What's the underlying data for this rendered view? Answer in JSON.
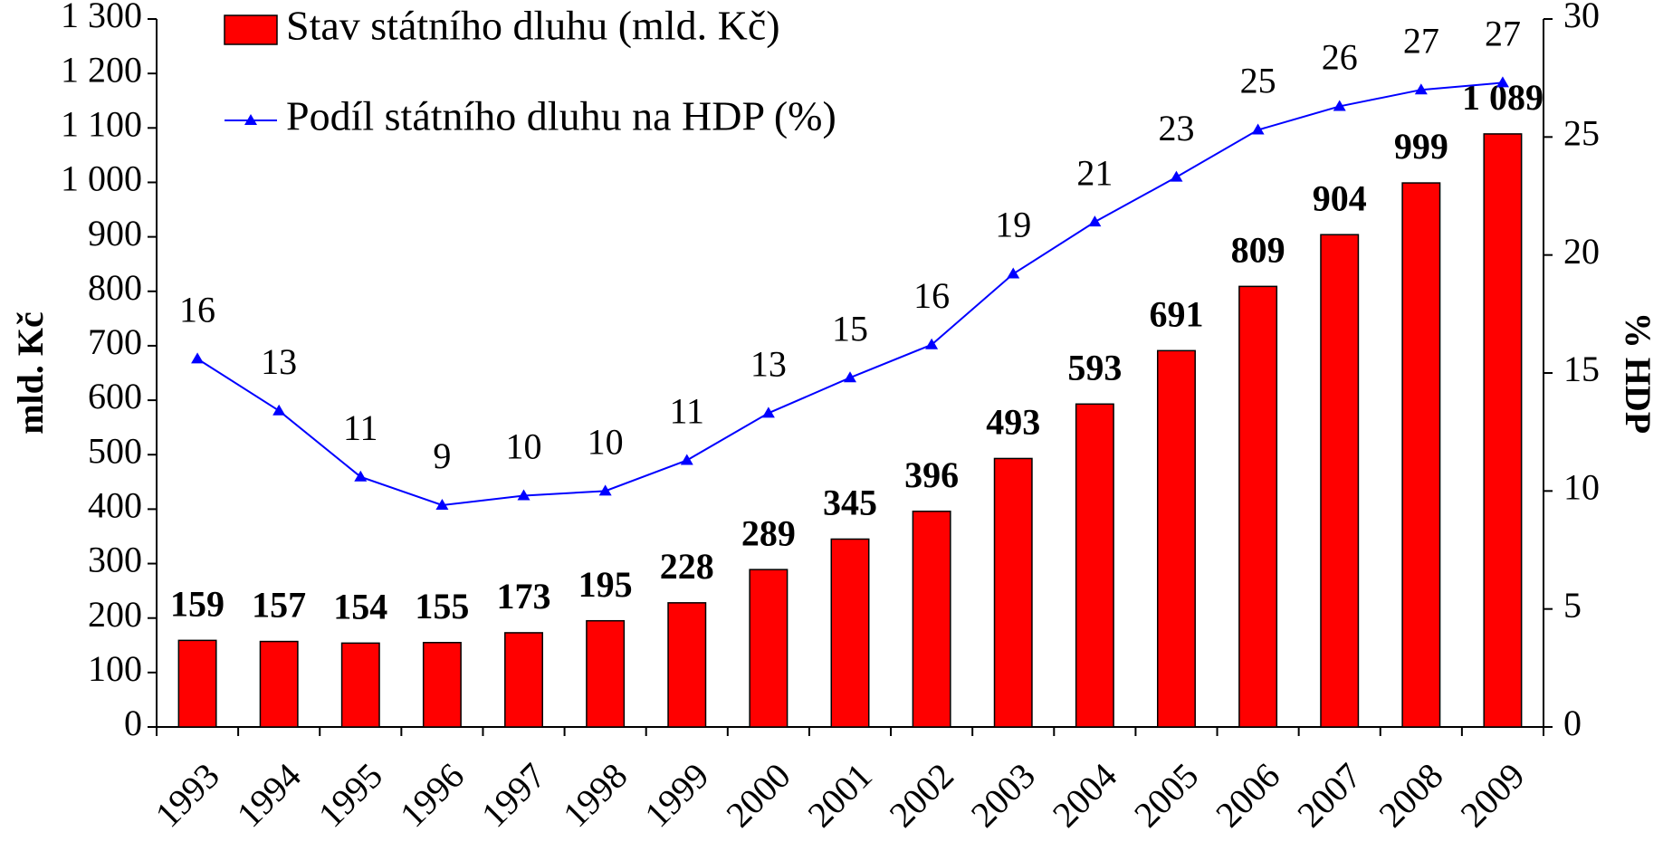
{
  "chart_data": {
    "type": "bar-line",
    "categories": [
      "1993",
      "1994",
      "1995",
      "1996",
      "1997",
      "1998",
      "1999",
      "2000",
      "2001",
      "2002",
      "2003",
      "2004",
      "2005",
      "2006",
      "2007",
      "2008",
      "2009"
    ],
    "series": [
      {
        "name": "Stav státního dluhu (mld. Kč)",
        "type": "bar",
        "color": "#ff0000",
        "values": [
          159,
          157,
          154,
          155,
          173,
          195,
          228,
          289,
          345,
          396,
          493,
          593,
          691,
          809,
          904,
          999,
          1089
        ],
        "value_labels": [
          "159",
          "157",
          "154",
          "155",
          "173",
          "195",
          "228",
          "289",
          "345",
          "396",
          "493",
          "593",
          "691",
          "809",
          "904",
          "999",
          "1 089"
        ]
      },
      {
        "name": "Podíl státního dluhu na HDP (%)",
        "type": "line",
        "axis": "y2",
        "color": "#0000ff",
        "values": [
          15.6,
          13.4,
          10.6,
          9.4,
          9.8,
          10.0,
          11.3,
          13.3,
          14.8,
          16.2,
          19.2,
          21.4,
          23.3,
          25.3,
          26.3,
          27.0,
          27.3
        ],
        "value_labels": [
          "16",
          "13",
          "11",
          "9",
          "10",
          "10",
          "11",
          "13",
          "15",
          "16",
          "19",
          "21",
          "23",
          "25",
          "26",
          "27",
          "27"
        ]
      }
    ],
    "ylabel": "mld. Kč",
    "y2label": "% HDP",
    "ylim": [
      0,
      1300
    ],
    "yticks": [
      0,
      100,
      200,
      300,
      400,
      500,
      600,
      700,
      800,
      900,
      {
        "value": 1000,
        "label": "1 000"
      },
      {
        "value": 1100,
        "label": "1 100"
      },
      {
        "value": 1200,
        "label": "1 200"
      },
      {
        "value": 1300,
        "label": "1 300"
      }
    ],
    "y2lim": [
      0,
      30
    ],
    "y2ticks": [
      0,
      5,
      10,
      15,
      20,
      25,
      30
    ],
    "legend": "top-left"
  }
}
